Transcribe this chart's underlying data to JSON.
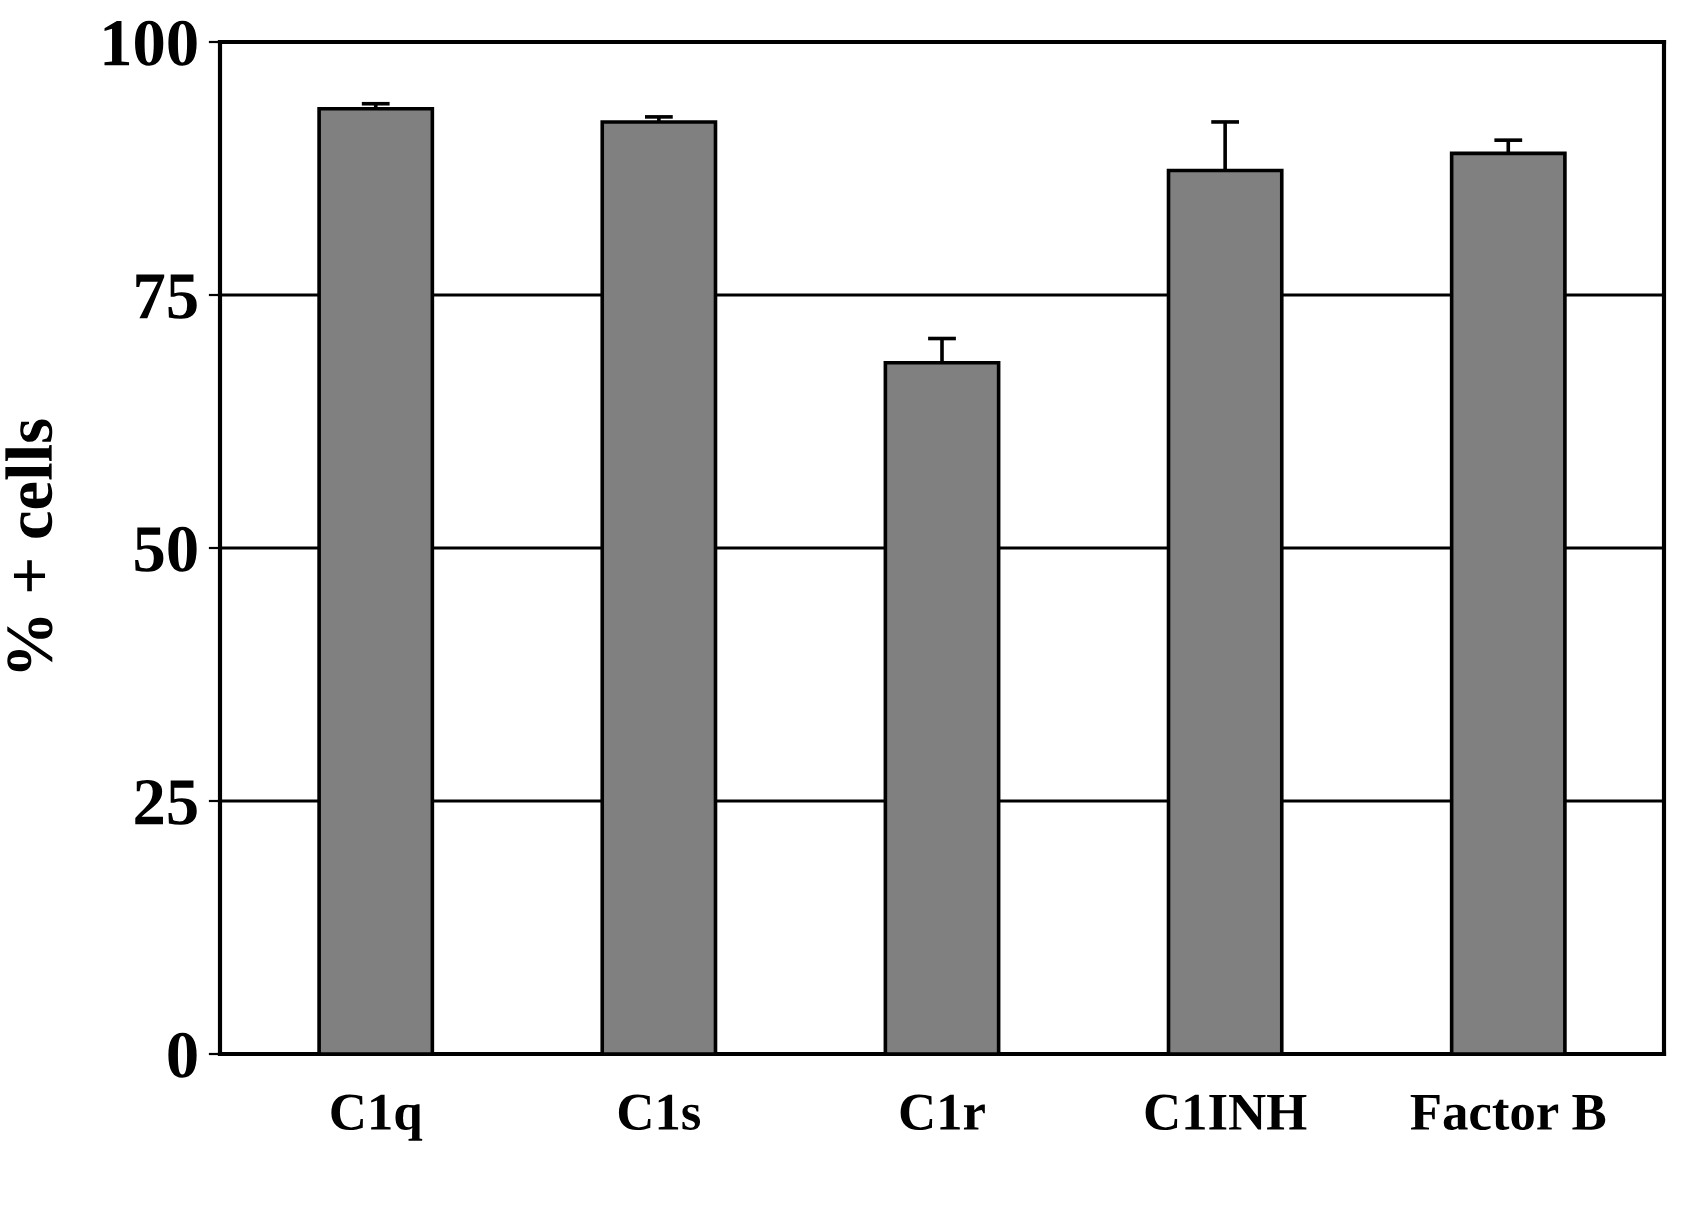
{
  "chart_data": {
    "type": "bar",
    "ylabel": "% + cells",
    "categories": [
      "C1q",
      "C1s",
      "C1r",
      "C1INH",
      "Factor B"
    ],
    "values": [
      93.4,
      92.1,
      68.3,
      87.3,
      89.0
    ],
    "errors": [
      0.5,
      0.5,
      2.4,
      4.8,
      1.3
    ],
    "color": "#808080",
    "ylim": [
      0,
      100
    ],
    "yticks": [
      0,
      25,
      50,
      75,
      100
    ],
    "grid": "y",
    "legend": false
  }
}
